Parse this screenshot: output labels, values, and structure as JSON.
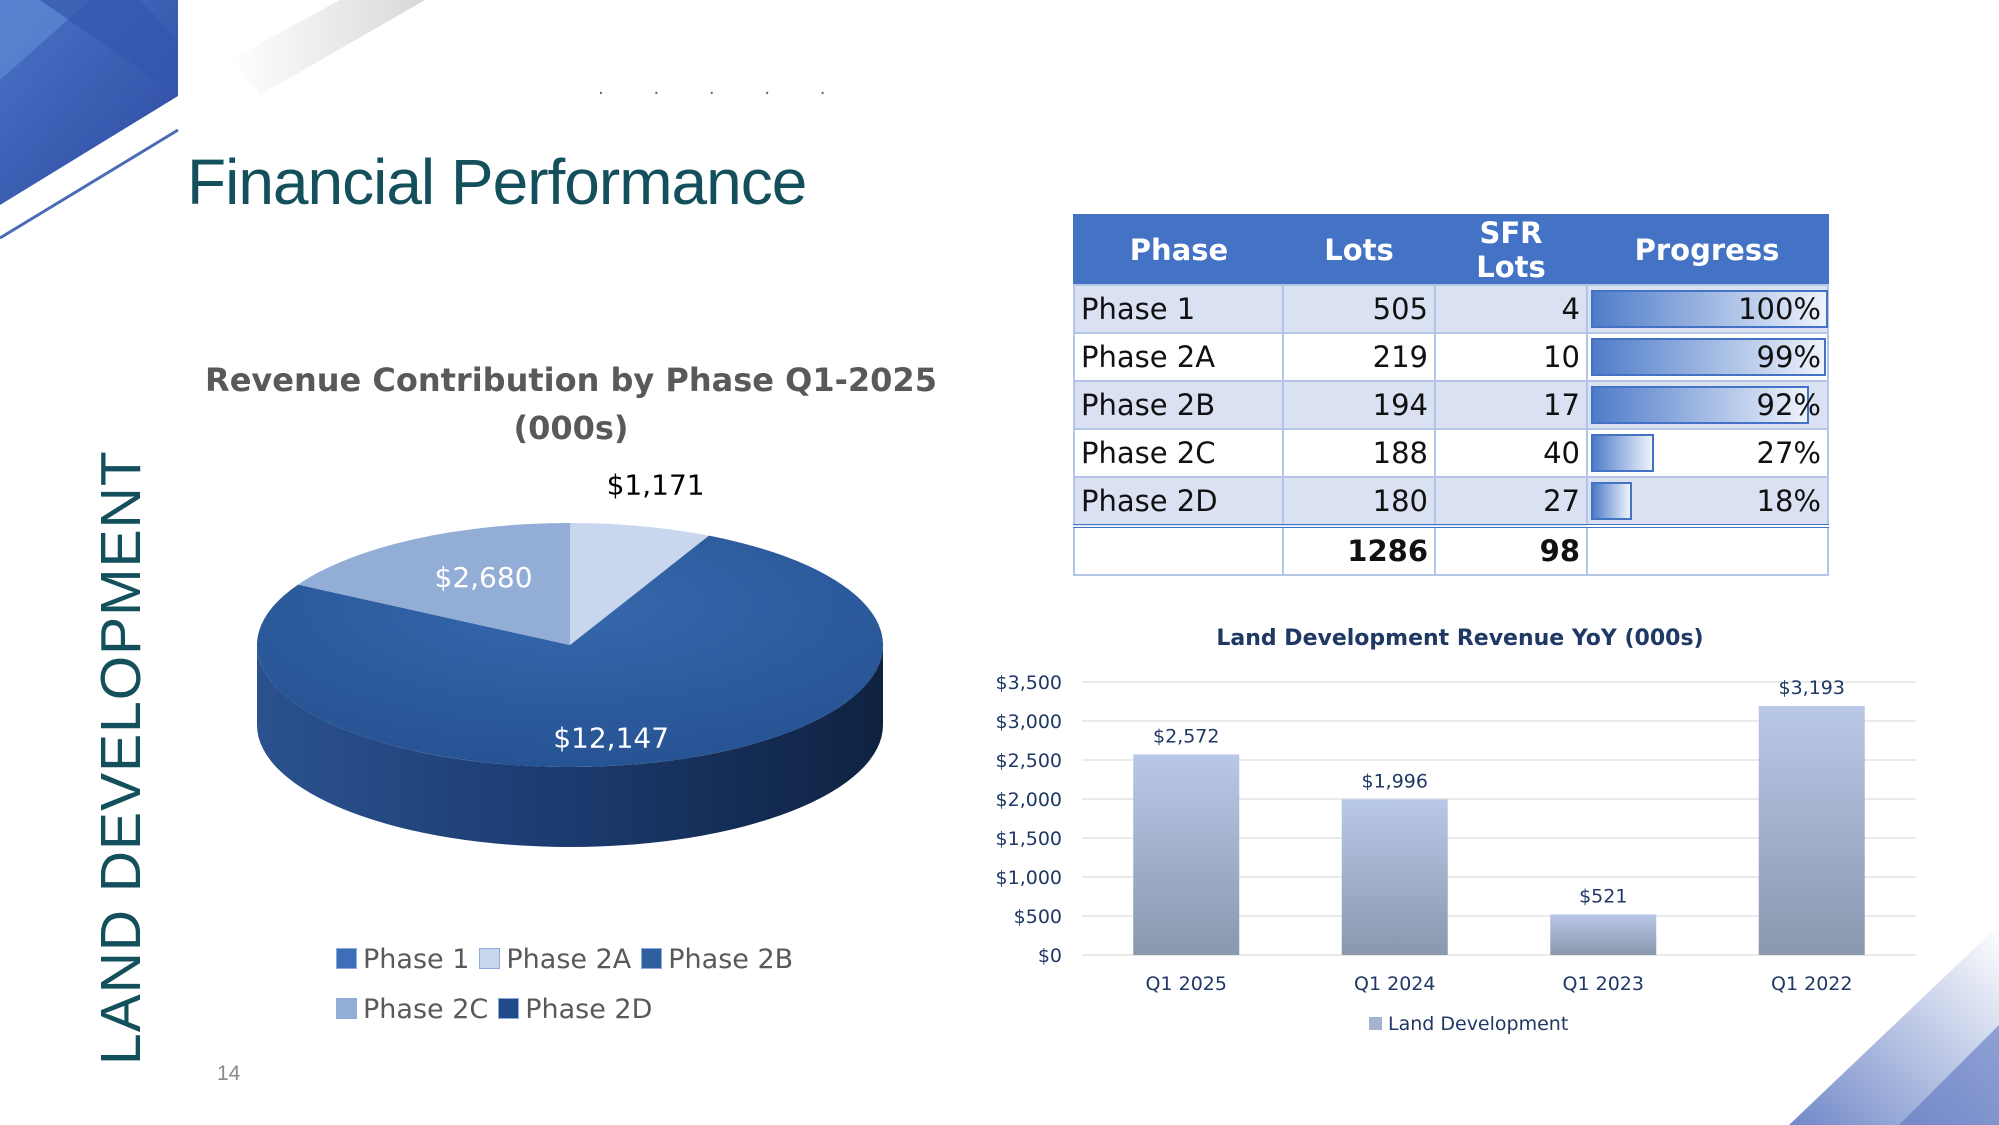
{
  "slide": {
    "title": "Financial Performance",
    "side_label": "LAND DEVELOPMENT",
    "page_number": "14",
    "dots": ". . . . ."
  },
  "colors": {
    "title": "#13505b",
    "table_header": "#4472c4",
    "table_alt_row": "#d9e1f2"
  },
  "table": {
    "headers": [
      "Phase",
      "Lots",
      "SFR Lots",
      "Progress"
    ],
    "rows": [
      {
        "phase": "Phase 1",
        "lots": "505",
        "sfr": "4",
        "progress": "100%",
        "progress_value": 100
      },
      {
        "phase": "Phase 2A",
        "lots": "219",
        "sfr": "10",
        "progress": "99%",
        "progress_value": 99
      },
      {
        "phase": "Phase 2B",
        "lots": "194",
        "sfr": "17",
        "progress": "92%",
        "progress_value": 92
      },
      {
        "phase": "Phase 2C",
        "lots": "188",
        "sfr": "40",
        "progress": "27%",
        "progress_value": 27
      },
      {
        "phase": "Phase 2D",
        "lots": "180",
        "sfr": "27",
        "progress": "18%",
        "progress_value": 18
      }
    ],
    "totals": {
      "lots": "1286",
      "sfr": "98"
    }
  },
  "chart_data": [
    {
      "type": "pie",
      "title": "Revenue Contribution by Phase Q1-2025",
      "subtitle": "(000s)",
      "categories": [
        "Phase 1",
        "Phase 2A",
        "Phase 2B",
        "Phase 2C",
        "Phase 2D"
      ],
      "values": [
        0,
        1171,
        12147,
        2680,
        0
      ],
      "data_labels": [
        "",
        "$1,171",
        "$12,147",
        "$2,680",
        ""
      ],
      "colors": [
        "#3d6fb8",
        "#c9d7ee",
        "#2f5f9e",
        "#93aed6",
        "#1f4a8a"
      ],
      "legend_position": "bottom"
    },
    {
      "type": "bar",
      "title": "Land Development Revenue YoY (000s)",
      "categories": [
        "Q1 2025",
        "Q1 2024",
        "Q1 2023",
        "Q1 2022"
      ],
      "series": [
        {
          "name": "Land Development",
          "values": [
            2572,
            1996,
            521,
            3193
          ]
        }
      ],
      "data_labels": [
        "$2,572",
        "$1,996",
        "$521",
        "$3,193"
      ],
      "y_ticks": [
        "$0",
        "$500",
        "$1,000",
        "$1,500",
        "$2,000",
        "$2,500",
        "$3,000",
        "$3,500"
      ],
      "ylim": [
        0,
        3500
      ],
      "grid": true,
      "legend_position": "bottom"
    }
  ]
}
